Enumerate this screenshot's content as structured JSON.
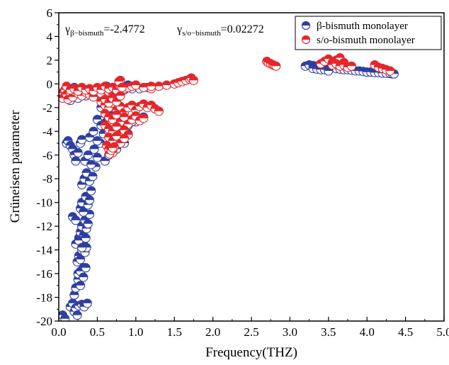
{
  "chart_data": {
    "type": "scatter",
    "xlabel": "Frequency(THZ)",
    "ylabel": "Grüneisen parameter",
    "xlim": [
      0.0,
      5.0
    ],
    "ylim": [
      -20,
      6
    ],
    "x_ticks": [
      "0.0",
      "0.5",
      "1.0",
      "1.5",
      "2.0",
      "2.5",
      "3.0",
      "3.5",
      "4.0",
      "4.5",
      "5.0"
    ],
    "y_ticks": [
      "6",
      "4",
      "2",
      "0",
      "-2",
      "-4",
      "-6",
      "-8",
      "-10",
      "-12",
      "-14",
      "-16",
      "-18",
      "-20"
    ],
    "grid": false,
    "legend_position": "top-right",
    "annotations": [
      {
        "symbol": "γ",
        "sub": "β−bismuth",
        "value": "=-2.4772"
      },
      {
        "symbol": "γ",
        "sub": "s/o−bismuth",
        "value": "=0.02272"
      }
    ],
    "series": [
      {
        "name": "β-bismuth monolayer",
        "color": "#2e3fa3",
        "x": [
          0.02,
          0.05,
          0.08,
          0.1,
          0.12,
          0.15,
          0.18,
          0.2,
          0.22,
          0.25,
          0.28,
          0.3,
          0.15,
          0.18,
          0.2,
          0.22,
          0.24,
          0.26,
          0.2,
          0.22,
          0.25,
          0.28,
          0.3,
          0.32,
          0.24,
          0.26,
          0.28,
          0.3,
          0.32,
          0.34,
          0.36,
          0.26,
          0.28,
          0.3,
          0.32,
          0.34,
          0.36,
          0.38,
          0.4,
          0.28,
          0.3,
          0.32,
          0.35,
          0.38,
          0.4,
          0.42,
          0.3,
          0.33,
          0.36,
          0.4,
          0.44,
          0.48,
          0.34,
          0.38,
          0.42,
          0.46,
          0.5,
          0.54,
          0.4,
          0.45,
          0.5,
          0.55,
          0.58,
          0.5,
          0.55,
          0.6,
          0.62,
          0.65,
          0.55,
          0.6,
          0.65,
          0.7,
          0.6,
          0.65,
          0.7,
          0.75,
          0.8,
          0.7,
          0.75,
          0.8,
          0.85,
          0.9,
          0.3,
          0.33,
          0.37,
          0.25,
          0.28,
          0.32,
          0.35,
          0.22,
          0.26,
          0.3,
          0.35,
          0.18,
          0.22,
          0.05,
          0.15,
          0.25,
          0.35,
          0.45,
          0.55,
          0.62,
          0.2,
          0.3,
          0.4,
          0.5,
          0.6,
          0.7,
          0.8,
          0.9,
          1.0,
          0.15,
          0.25,
          0.35,
          0.45,
          0.55,
          0.65,
          0.75,
          0.85,
          0.95,
          1.05,
          1.15,
          0.7,
          0.8,
          0.9,
          1.0,
          1.1,
          0.65,
          0.75,
          0.85,
          0.95,
          0.7,
          0.8,
          0.9,
          0.75,
          0.85,
          0.6,
          0.65,
          3.2,
          3.25,
          3.3,
          3.35,
          3.4,
          3.45,
          3.5,
          3.55,
          3.6,
          3.65,
          3.7,
          3.75,
          3.8,
          3.85,
          3.9,
          3.95,
          4.0,
          4.05,
          4.1,
          4.15,
          4.2,
          4.25,
          4.3,
          4.33,
          4.35,
          3.3,
          3.35,
          3.4,
          3.45,
          3.5
        ],
        "y": [
          -19.7,
          -19.5,
          -19.8,
          -5.0,
          -4.8,
          -5.2,
          -5.5,
          -6.0,
          -6.5,
          -5.8,
          -5.0,
          -4.7,
          -18.8,
          -18.5,
          -19.2,
          -18.9,
          -19.5,
          -18.7,
          -17.8,
          -17.2,
          -16.5,
          -17.0,
          -16.2,
          -15.5,
          -15.0,
          -14.5,
          -14.8,
          -14.0,
          -13.5,
          -14.2,
          -13.8,
          -13.0,
          -12.5,
          -12.0,
          -12.8,
          -11.5,
          -12.2,
          -11.8,
          -11.0,
          -10.5,
          -10.0,
          -10.8,
          -9.5,
          -10.2,
          -9.8,
          -9.0,
          -8.5,
          -8.0,
          -7.5,
          -8.2,
          -7.8,
          -7.0,
          -6.5,
          -6.0,
          -6.8,
          -5.5,
          -6.2,
          -5.0,
          -4.5,
          -4.0,
          -4.8,
          -3.5,
          -4.2,
          -3.0,
          -3.5,
          -2.8,
          -3.2,
          -2.5,
          -2.0,
          -1.8,
          -2.2,
          -1.5,
          -1.2,
          -0.8,
          -1.0,
          -0.5,
          -0.7,
          -0.3,
          -0.5,
          -0.2,
          -0.4,
          -0.1,
          -18.6,
          -18.8,
          -18.5,
          -16.0,
          -15.8,
          -16.3,
          -15.5,
          -13.5,
          -13.2,
          -13.8,
          -13.0,
          -11.2,
          -11.5,
          -1.0,
          -1.2,
          -0.8,
          -1.0,
          -0.6,
          -0.4,
          -0.2,
          -0.3,
          -0.5,
          -0.6,
          -0.8,
          -1.0,
          -0.7,
          -0.4,
          -0.3,
          -0.2,
          -1.4,
          -1.2,
          -1.0,
          -0.9,
          -0.7,
          -0.6,
          -0.5,
          -0.5,
          -0.4,
          -0.4,
          -0.3,
          -2.5,
          -3.0,
          -3.5,
          -3.2,
          -2.8,
          -4.0,
          -4.5,
          -3.8,
          -3.2,
          -5.0,
          -4.5,
          -4.2,
          -5.5,
          -5.0,
          -6.5,
          -6.0,
          1.5,
          1.6,
          1.55,
          1.5,
          1.45,
          1.5,
          1.4,
          1.35,
          1.3,
          1.25,
          1.2,
          1.2,
          1.15,
          1.1,
          1.1,
          1.05,
          1.0,
          1.0,
          0.95,
          0.95,
          0.9,
          0.9,
          0.88,
          0.85,
          0.85,
          1.3,
          1.25,
          1.2,
          1.2,
          1.1
        ]
      },
      {
        "name": "s/o-bismuth monolayer",
        "color": "#e5262b",
        "x": [
          0.0,
          0.02,
          0.05,
          0.08,
          0.1,
          0.12,
          0.15,
          0.18,
          0.2,
          0.25,
          0.3,
          0.35,
          0.4,
          0.45,
          0.5,
          0.55,
          0.6,
          0.65,
          0.7,
          0.75,
          0.8,
          0.1,
          0.15,
          0.2,
          0.25,
          0.3,
          0.35,
          0.4,
          0.45,
          0.5,
          0.55,
          0.6,
          0.65,
          0.7,
          0.75,
          0.8,
          0.85,
          0.9,
          0.95,
          1.0,
          0.55,
          0.6,
          0.65,
          0.7,
          0.75,
          0.8,
          0.85,
          0.9,
          0.95,
          1.0,
          1.05,
          1.1,
          1.15,
          1.2,
          1.25,
          1.3,
          0.6,
          0.65,
          0.7,
          0.75,
          0.8,
          0.85,
          0.9,
          0.95,
          1.0,
          1.05,
          1.1,
          0.6,
          0.65,
          0.7,
          0.75,
          0.8,
          0.85,
          0.9,
          0.65,
          0.7,
          0.75,
          0.8,
          0.85,
          0.6,
          0.65,
          0.7,
          0.75,
          0.8,
          0.62,
          0.65,
          0.7,
          0.72,
          0.66,
          0.68,
          0.7,
          1.2,
          1.3,
          1.4,
          1.5,
          1.55,
          1.6,
          1.65,
          1.7,
          1.72,
          1.75,
          0.8,
          1.0,
          1.1,
          1.2,
          0.78,
          0.82,
          2.7,
          2.72,
          2.75,
          2.78,
          2.8,
          2.82,
          3.4,
          3.45,
          3.5,
          3.55,
          3.6,
          3.62,
          3.65,
          3.7,
          3.55,
          3.6,
          3.65,
          3.7,
          3.75,
          3.8,
          4.1,
          4.15,
          4.2,
          4.25,
          4.3
        ],
        "y": [
          -1.0,
          -0.8,
          -1.2,
          -0.5,
          -0.9,
          -1.3,
          -0.7,
          -1.1,
          -0.6,
          -0.8,
          -1.0,
          -0.7,
          -0.9,
          -1.1,
          -0.6,
          -0.8,
          -0.5,
          -0.7,
          -0.9,
          -0.4,
          -0.6,
          -0.2,
          -0.5,
          -0.4,
          -0.6,
          -0.3,
          -0.5,
          -0.4,
          -0.6,
          -0.3,
          -0.5,
          -0.2,
          -0.4,
          -0.3,
          -0.5,
          -0.2,
          -0.4,
          -0.3,
          -0.2,
          -0.1,
          -1.5,
          -1.8,
          -2.0,
          -1.6,
          -2.2,
          -1.9,
          -2.4,
          -2.0,
          -1.8,
          -2.2,
          -1.9,
          -1.7,
          -2.0,
          -1.8,
          -2.1,
          -2.3,
          -2.5,
          -2.8,
          -3.0,
          -2.6,
          -3.2,
          -2.8,
          -3.4,
          -3.0,
          -2.7,
          -3.1,
          -2.9,
          -3.5,
          -3.8,
          -4.0,
          -3.6,
          -4.2,
          -3.9,
          -4.3,
          -4.5,
          -4.8,
          -4.4,
          -5.0,
          -4.6,
          -1.3,
          -1.6,
          -1.2,
          -1.5,
          -1.0,
          -5.2,
          -5.5,
          -5.8,
          -5.3,
          -5.9,
          -5.6,
          -5.4,
          -0.4,
          -0.2,
          -0.1,
          0.0,
          0.1,
          0.2,
          0.3,
          0.4,
          0.5,
          0.3,
          0.3,
          -0.1,
          -0.3,
          -0.2,
          0.2,
          -0.3,
          1.9,
          1.8,
          1.7,
          1.6,
          1.55,
          1.5,
          1.7,
          1.9,
          2.1,
          1.8,
          2.0,
          1.9,
          2.2,
          1.8,
          1.6,
          1.7,
          1.5,
          1.6,
          1.4,
          1.5,
          1.6,
          1.4,
          1.3,
          1.2,
          1.1
        ]
      }
    ]
  }
}
